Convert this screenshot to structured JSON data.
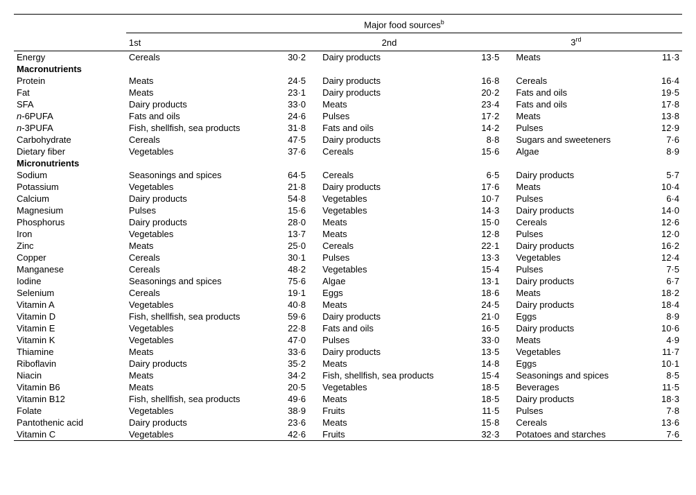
{
  "header": {
    "title_html": "Major food sources<sup>b</sup>",
    "rank1": "1st",
    "rank2": "2nd",
    "rank3_html": "3<sup>rd</sup>"
  },
  "sections": [
    {
      "title": null,
      "rows": [
        {
          "label": "Energy",
          "s1": "Cereals",
          "v1": "30·2",
          "s2": "Dairy products",
          "v2": "13·5",
          "s3": "Meats",
          "v3": "11·3"
        }
      ]
    },
    {
      "title": "Macronutrients",
      "rows": [
        {
          "label": "Protein",
          "s1": "Meats",
          "v1": "24·5",
          "s2": "Dairy products",
          "v2": "16·8",
          "s3": "Cereals",
          "v3": "16·4"
        },
        {
          "label": "Fat",
          "s1": "Meats",
          "v1": "23·1",
          "s2": "Dairy products",
          "v2": "20·2",
          "s3": "Fats and oils",
          "v3": "19·5"
        },
        {
          "label": "SFA",
          "s1": "Dairy products",
          "v1": "33·0",
          "s2": "Meats",
          "v2": "23·4",
          "s3": "Fats and oils",
          "v3": "17·8"
        },
        {
          "label_html": "<span class='italic'>n</span>-6PUFA",
          "s1": "Fats and oils",
          "v1": "24·6",
          "s2": "Pulses",
          "v2": "17·2",
          "s3": "Meats",
          "v3": "13·8"
        },
        {
          "label_html": "<span class='italic'>n</span>-3PUFA",
          "s1": "Fish, shellfish, sea products",
          "v1": "31·8",
          "s2": "Fats and oils",
          "v2": "14·2",
          "s3": "Pulses",
          "v3": "12·9"
        },
        {
          "label": "Carbohydrate",
          "s1": "Cereals",
          "v1": "47·5",
          "s2": "Dairy products",
          "v2": "8·8",
          "s3": "Sugars and sweeteners",
          "v3": "7·6"
        },
        {
          "label": "Dietary fiber",
          "s1": "Vegetables",
          "v1": "37·6",
          "s2": "Cereals",
          "v2": "15·6",
          "s3": "Algae",
          "v3": "8·9"
        }
      ]
    },
    {
      "title": "Micronutrients",
      "rows": [
        {
          "label": "Sodium",
          "s1": "Seasonings and spices",
          "v1": "64·5",
          "s2": "Cereals",
          "v2": "6·5",
          "s3": "Dairy products",
          "v3": "5·7"
        },
        {
          "label": "Potassium",
          "s1": "Vegetables",
          "v1": "21·8",
          "s2": "Dairy products",
          "v2": "17·6",
          "s3": "Meats",
          "v3": "10·4"
        },
        {
          "label": "Calcium",
          "s1": "Dairy products",
          "v1": "54·8",
          "s2": "Vegetables",
          "v2": "10·7",
          "s3": "Pulses",
          "v3": "6·4"
        },
        {
          "label": "Magnesium",
          "s1": "Pulses",
          "v1": "15·6",
          "s2": "Vegetables",
          "v2": "14·3",
          "s3": "Dairy products",
          "v3": "14·0"
        },
        {
          "label": "Phosphorus",
          "s1": "Dairy products",
          "v1": "28·0",
          "s2": "Meats",
          "v2": "15·0",
          "s3": "Cereals",
          "v3": "12·6"
        },
        {
          "label": "Iron",
          "s1": "Vegetables",
          "v1": "13·7",
          "s2": "Meats",
          "v2": "12·8",
          "s3": "Pulses",
          "v3": "12·0"
        },
        {
          "label": "Zinc",
          "s1": "Meats",
          "v1": "25·0",
          "s2": "Cereals",
          "v2": "22·1",
          "s3": "Dairy products",
          "v3": "16·2"
        },
        {
          "label": "Copper",
          "s1": "Cereals",
          "v1": "30·1",
          "s2": "Pulses",
          "v2": "13·3",
          "s3": "Vegetables",
          "v3": "12·4"
        },
        {
          "label": "Manganese",
          "s1": "Cereals",
          "v1": "48·2",
          "s2": "Vegetables",
          "v2": "15·4",
          "s3": "Pulses",
          "v3": "7·5"
        },
        {
          "label": "Iodine",
          "s1": "Seasonings and spices",
          "v1": "75·6",
          "s2": "Algae",
          "v2": "13·1",
          "s3": "Dairy products",
          "v3": "6·7"
        },
        {
          "label": "Selenium",
          "s1": "Cereals",
          "v1": "19·1",
          "s2": "Eggs",
          "v2": "18·6",
          "s3": "Meats",
          "v3": "18·2"
        },
        {
          "label": "Vitamin A",
          "s1": "Vegetables",
          "v1": "40·8",
          "s2": "Meats",
          "v2": "24·5",
          "s3": "Dairy products",
          "v3": "18·4"
        },
        {
          "label": "Vitamin D",
          "s1": "Fish, shellfish, sea products",
          "v1": "59·6",
          "s2": "Dairy products",
          "v2": "21·0",
          "s3": "Eggs",
          "v3": "8·9"
        },
        {
          "label": "Vitamin E",
          "s1": "Vegetables",
          "v1": "22·8",
          "s2": "Fats and oils",
          "v2": "16·5",
          "s3": "Dairy products",
          "v3": "10·6"
        },
        {
          "label": "Vitamin K",
          "s1": "Vegetables",
          "v1": "47·0",
          "s2": "Pulses",
          "v2": "33·0",
          "s3": "Meats",
          "v3": "4·9"
        },
        {
          "label": "Thiamine",
          "s1": "Meats",
          "v1": "33·6",
          "s2": "Dairy products",
          "v2": "13·5",
          "s3": "Vegetables",
          "v3": "11·7"
        },
        {
          "label": "Riboflavin",
          "s1": "Dairy products",
          "v1": "35·2",
          "s2": "Meats",
          "v2": "14·8",
          "s3": "Eggs",
          "v3": "10·1"
        },
        {
          "label": "Niacin",
          "s1": "Meats",
          "v1": "34·2",
          "s2": "Fish, shellfish, sea products",
          "v2": "15·4",
          "s3": "Seasonings and spices",
          "v3": "8·5"
        },
        {
          "label": "Vitamin B6",
          "s1": "Meats",
          "v1": "20·5",
          "s2": "Vegetables",
          "v2": "18·5",
          "s3": "Beverages",
          "v3": "11·5"
        },
        {
          "label": "Vitamin B12",
          "s1": "Fish, shellfish, sea products",
          "v1": "49·6",
          "s2": "Meats",
          "v2": "18·5",
          "s3": "Dairy products",
          "v3": "18·3"
        },
        {
          "label": "Folate",
          "s1": "Vegetables",
          "v1": "38·9",
          "s2": "Fruits",
          "v2": "11·5",
          "s3": "Pulses",
          "v3": "7·8"
        },
        {
          "label": "Pantothenic acid",
          "s1": "Dairy products",
          "v1": "23·6",
          "s2": "Meats",
          "v2": "15·8",
          "s3": "Cereals",
          "v3": "13·6"
        },
        {
          "label": "Vitamin C",
          "s1": "Vegetables",
          "v1": "42·6",
          "s2": "Fruits",
          "v2": "32·3",
          "s3": "Potatoes and starches",
          "v3": "7·6"
        }
      ]
    }
  ]
}
